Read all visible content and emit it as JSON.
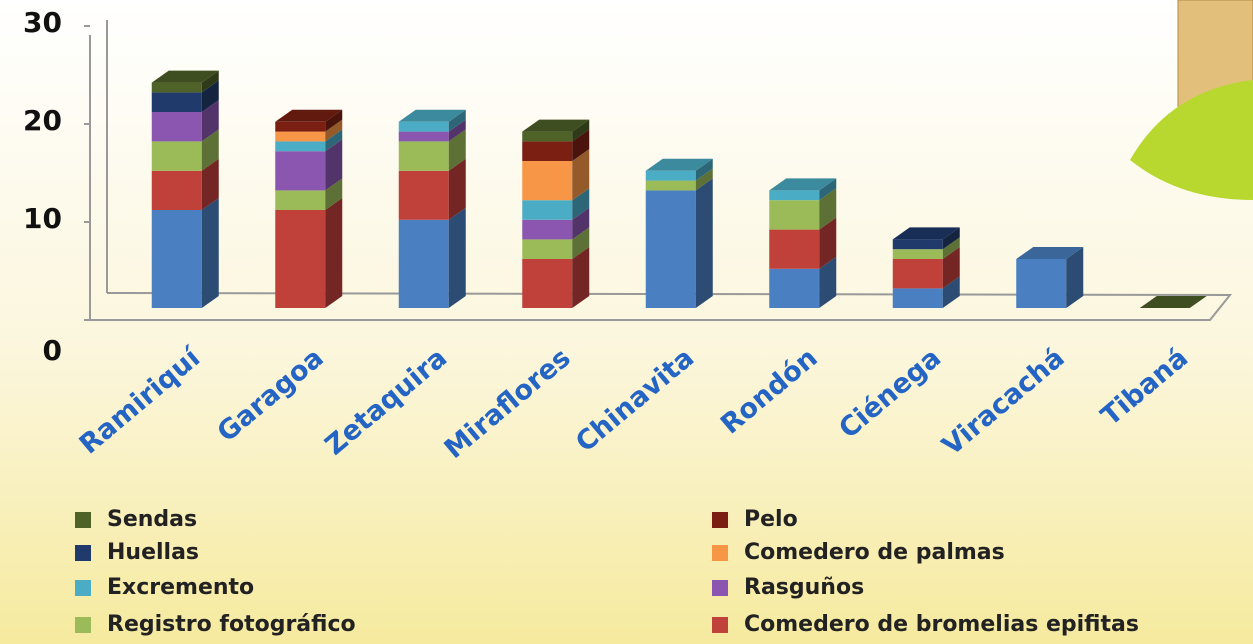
{
  "chart_data": {
    "type": "bar",
    "stacked": true,
    "categories": [
      "Ramiriquí",
      "Garagoa",
      "Zetaquira",
      "Miraflores",
      "Chinavita",
      "Rondón",
      "Ciénega",
      "Viracachá",
      "Tibaná"
    ],
    "ylim": [
      0,
      30
    ],
    "yticks": [
      0,
      10,
      20,
      30
    ],
    "series": [
      {
        "color": "#4a7fc1",
        "values": [
          10,
          0,
          9,
          0,
          12,
          4,
          2,
          5,
          0
        ]
      },
      {
        "name": "Comedero de bromelias epifitas",
        "color": "#c0403a",
        "values": [
          4,
          10,
          5,
          5,
          0,
          4,
          3,
          0,
          0
        ]
      },
      {
        "name": "Registro fotográfico",
        "color": "#9bbb59",
        "values": [
          3,
          2,
          3,
          2,
          1,
          3,
          1,
          0,
          0
        ]
      },
      {
        "name": "Rasguños",
        "color": "#8a56b0",
        "values": [
          3,
          4,
          1,
          2,
          0,
          0,
          0,
          0,
          0
        ]
      },
      {
        "name": "Excremento",
        "color": "#4bacc6",
        "values": [
          0,
          1,
          1,
          2,
          1,
          1,
          0,
          0,
          0
        ]
      },
      {
        "name": "Comedero de palmas",
        "color": "#f79646",
        "values": [
          0,
          1,
          0,
          4,
          0,
          0,
          0,
          0,
          0
        ]
      },
      {
        "name": "Pelo",
        "color": "#7b1f12",
        "values": [
          0,
          1,
          0,
          2,
          0,
          0,
          0,
          0,
          0
        ]
      },
      {
        "name": "Huellas",
        "color": "#1f3a6b",
        "values": [
          2,
          0,
          0,
          0,
          0,
          0,
          1,
          0,
          0
        ]
      },
      {
        "name": "Sendas",
        "color": "#4f6228",
        "values": [
          1,
          0,
          0,
          1,
          0,
          0,
          0,
          0,
          0
        ]
      }
    ]
  }
}
